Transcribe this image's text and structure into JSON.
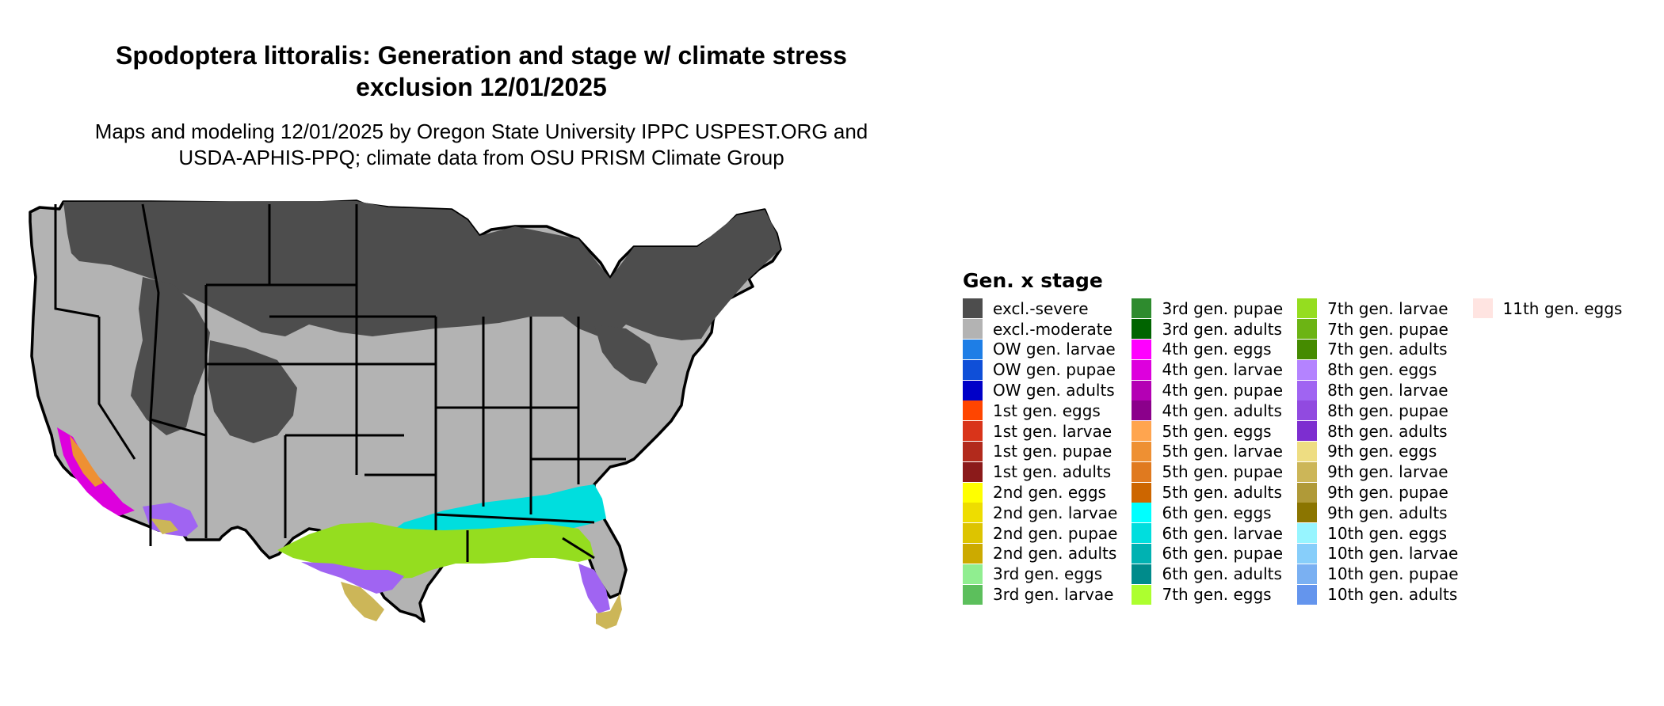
{
  "title_line1": "Spodoptera littoralis: Generation and stage w/ climate stress",
  "title_line2": "exclusion 12/01/2025",
  "subtitle_line1": "Maps and modeling 12/01/2025 by Oregon State University IPPC USPEST.ORG and",
  "subtitle_line2": "USDA-APHIS-PPQ; climate data from OSU PRISM Climate Group",
  "legend": {
    "title": "Gen. x stage",
    "columns": [
      [
        {
          "label": "excl.-severe",
          "color": "#4d4d4d"
        },
        {
          "label": "excl.-moderate",
          "color": "#b3b3b3"
        },
        {
          "label": "OW gen. larvae",
          "color": "#1e7ee6"
        },
        {
          "label": "OW gen. pupae",
          "color": "#0f4fd8"
        },
        {
          "label": "OW gen. adults",
          "color": "#0000c8"
        },
        {
          "label": "1st gen. eggs",
          "color": "#ff4500"
        },
        {
          "label": "1st gen. larvae",
          "color": "#d9341a"
        },
        {
          "label": "1st gen. pupae",
          "color": "#b22a1c"
        },
        {
          "label": "1st gen. adults",
          "color": "#8b1a1a"
        },
        {
          "label": "2nd gen. eggs",
          "color": "#ffff00"
        },
        {
          "label": "2nd gen. larvae",
          "color": "#eedd00"
        },
        {
          "label": "2nd gen. pupae",
          "color": "#ddc400"
        },
        {
          "label": "2nd gen. adults",
          "color": "#ccaa00"
        },
        {
          "label": "3rd gen. eggs",
          "color": "#90ee90"
        },
        {
          "label": "3rd gen. larvae",
          "color": "#5cbf5c"
        }
      ],
      [
        {
          "label": "3rd gen. pupae",
          "color": "#2e8b2e"
        },
        {
          "label": "3rd gen. adults",
          "color": "#006400"
        },
        {
          "label": "4th gen. eggs",
          "color": "#ff00ff"
        },
        {
          "label": "4th gen. larvae",
          "color": "#dd00dd"
        },
        {
          "label": "4th gen. pupae",
          "color": "#b400b4"
        },
        {
          "label": "4th gen. adults",
          "color": "#8b008b"
        },
        {
          "label": "5th gen. eggs",
          "color": "#ffa54f"
        },
        {
          "label": "5th gen. larvae",
          "color": "#ee9033"
        },
        {
          "label": "5th gen. pupae",
          "color": "#e07a1f"
        },
        {
          "label": "5th gen. adults",
          "color": "#cd6600"
        },
        {
          "label": "6th gen. eggs",
          "color": "#00ffff"
        },
        {
          "label": "6th gen. larvae",
          "color": "#00dede"
        },
        {
          "label": "6th gen. pupae",
          "color": "#00b2b2"
        },
        {
          "label": "6th gen. adults",
          "color": "#008b8b"
        },
        {
          "label": "7th gen. eggs",
          "color": "#adff2f"
        }
      ],
      [
        {
          "label": "7th gen. larvae",
          "color": "#95dd1f"
        },
        {
          "label": "7th gen. pupae",
          "color": "#6cb414"
        },
        {
          "label": "7th gen. adults",
          "color": "#458b00"
        },
        {
          "label": "8th gen. eggs",
          "color": "#b483ff"
        },
        {
          "label": "8th gen. larvae",
          "color": "#a064f2"
        },
        {
          "label": "8th gen. pupae",
          "color": "#914ae0"
        },
        {
          "label": "8th gen. adults",
          "color": "#7d2ed0"
        },
        {
          "label": "9th gen. eggs",
          "color": "#eedd82"
        },
        {
          "label": "9th gen. larvae",
          "color": "#ccb658"
        },
        {
          "label": "9th gen. pupae",
          "color": "#b09a38"
        },
        {
          "label": "9th gen. adults",
          "color": "#8b7500"
        },
        {
          "label": "10th gen. eggs",
          "color": "#97f5ff"
        },
        {
          "label": "10th gen. larvae",
          "color": "#87cefa"
        },
        {
          "label": "10th gen. pupae",
          "color": "#7ab0f2"
        },
        {
          "label": "10th gen. adults",
          "color": "#6495ed"
        }
      ],
      [
        {
          "label": "11th gen. eggs",
          "color": "#ffe4e1"
        }
      ]
    ]
  }
}
